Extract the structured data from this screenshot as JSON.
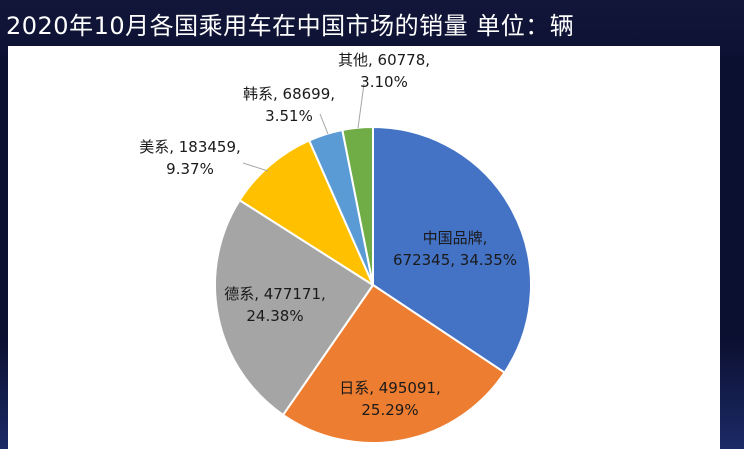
{
  "title": "2020年10月各国乘用车在中国市场的销量 单位：辆",
  "chart_data": {
    "type": "pie",
    "title": "2020年10月各国乘用车在中国市场的销量 单位：辆",
    "slices": [
      {
        "name": "中国品牌",
        "value": 672345,
        "percent_label": "34.35%",
        "line1": "中国品牌,",
        "line2": "672345, 34.35%",
        "color": "#4472c4"
      },
      {
        "name": "日系",
        "value": 495091,
        "percent_label": "25.29%",
        "line1": "日系, 495091,",
        "line2": "25.29%",
        "color": "#ed7d31"
      },
      {
        "name": "德系",
        "value": 477171,
        "percent_label": "24.38%",
        "line1": "德系, 477171,",
        "line2": "24.38%",
        "color": "#a5a5a5"
      },
      {
        "name": "美系",
        "value": 183459,
        "percent_label": "9.37%",
        "line1": "美系, 183459,",
        "line2": "9.37%",
        "color": "#ffc000"
      },
      {
        "name": "韩系",
        "value": 68699,
        "percent_label": "3.51%",
        "line1": "韩系, 68699,",
        "line2": "3.51%",
        "color": "#5b9bd5"
      },
      {
        "name": "其他",
        "value": 60778,
        "percent_label": "3.10%",
        "line1": "其他, 60778,",
        "line2": "3.10%",
        "color": "#70ad47"
      }
    ]
  }
}
